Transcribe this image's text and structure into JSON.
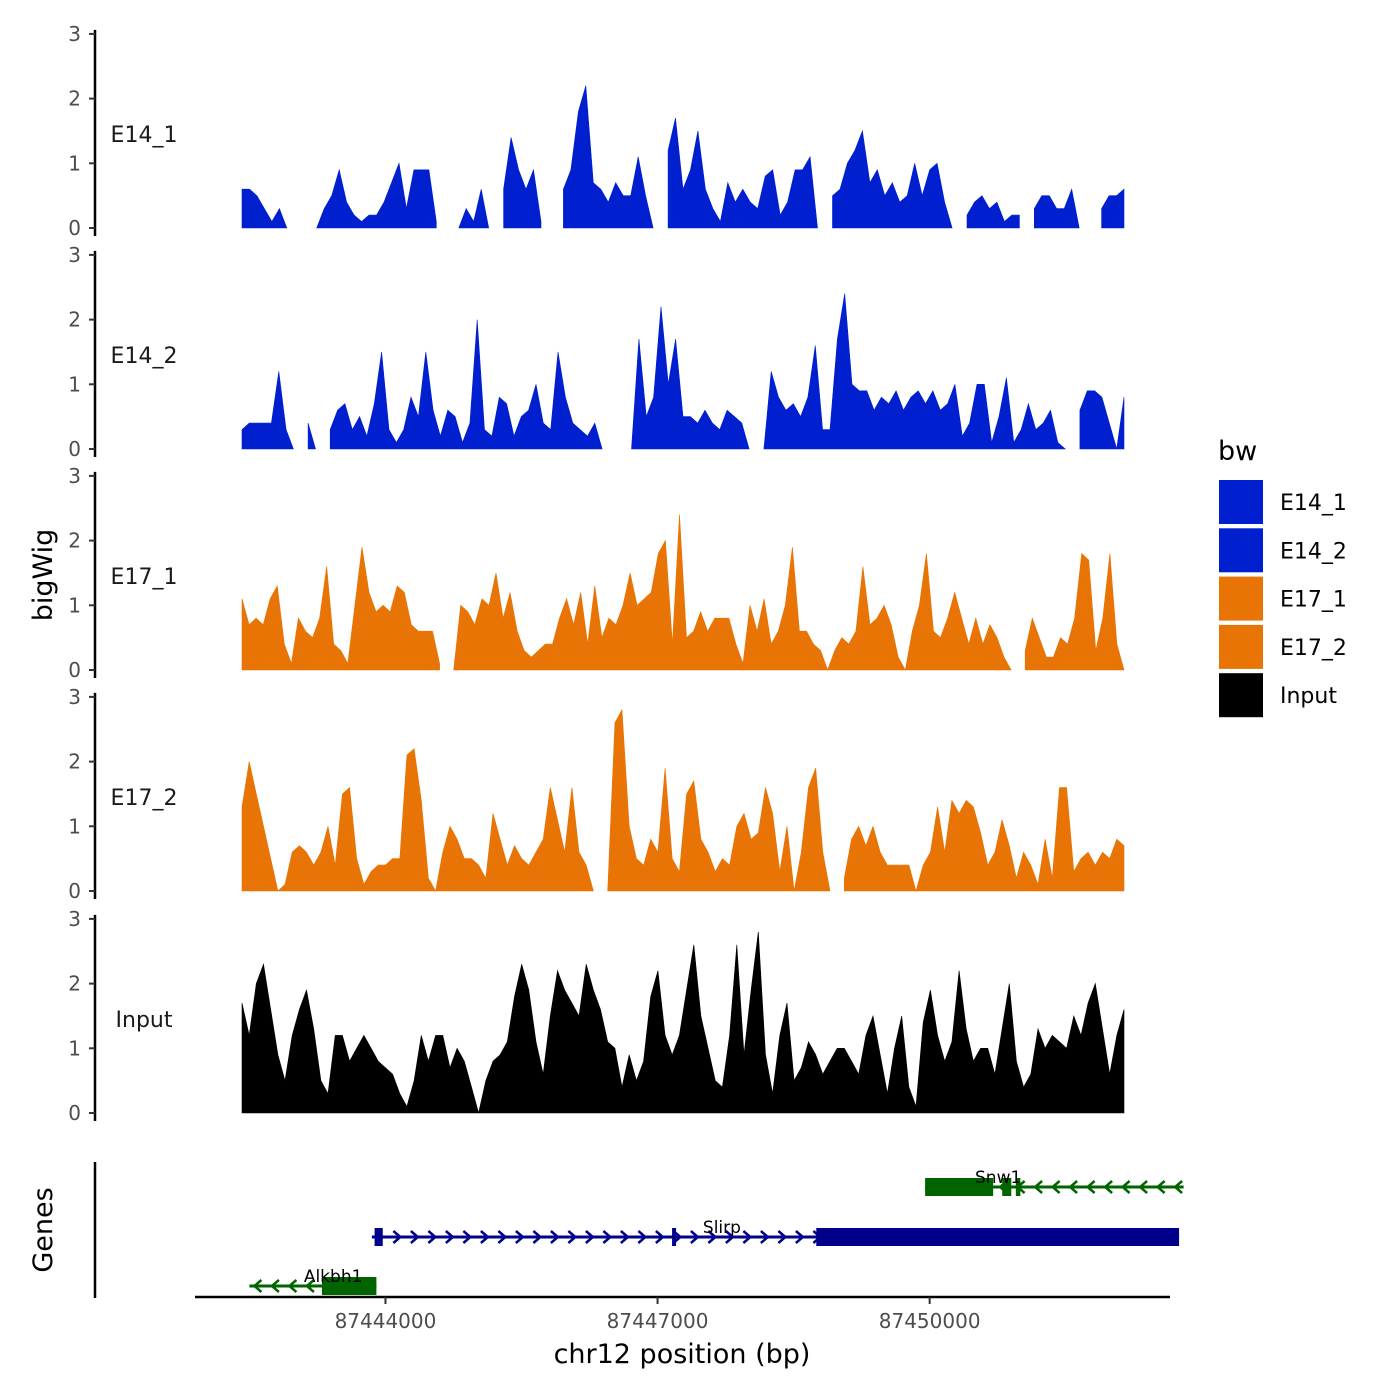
{
  "chart_data": {
    "type": "area",
    "title": "",
    "ylabel": "bigWig",
    "xlabel": "chr12 position (bp)",
    "xlim": [
      87441900,
      87452650
    ],
    "ylim": [
      0,
      3
    ],
    "y_ticks": [
      0,
      1,
      2,
      3
    ],
    "x_ticks": [
      87444000,
      87447000,
      87450000
    ],
    "region_start": 87442550,
    "region_end": 87452800,
    "legend": {
      "title": "bw",
      "position": "right",
      "entries": [
        {
          "label": "E14_1",
          "color": "#0020d0"
        },
        {
          "label": "E14_2",
          "color": "#0020d0"
        },
        {
          "label": "E17_1",
          "color": "#e87405"
        },
        {
          "label": "E17_2",
          "color": "#e87405"
        },
        {
          "label": "Input",
          "color": "#000000"
        }
      ]
    },
    "series": [
      {
        "name": "E14_1",
        "color": "#0020d0",
        "values": [
          0.6,
          0.6,
          0.5,
          0.3,
          0.1,
          0.3,
          0.0,
          null,
          null,
          null,
          0.0,
          0.3,
          0.5,
          0.9,
          0.4,
          0.2,
          0.1,
          0.2,
          0.2,
          0.4,
          0.7,
          1.0,
          0.3,
          0.9,
          0.9,
          0.9,
          0.1,
          null,
          null,
          0.0,
          0.3,
          0.1,
          0.6,
          0.0,
          null,
          0.6,
          1.4,
          0.9,
          0.6,
          0.9,
          0.1,
          null,
          null,
          0.6,
          0.9,
          1.8,
          2.2,
          0.7,
          0.6,
          0.4,
          0.7,
          0.5,
          0.5,
          1.1,
          0.5,
          0.0,
          null,
          1.2,
          1.7,
          0.6,
          0.9,
          1.5,
          0.6,
          0.3,
          0.1,
          0.7,
          0.4,
          0.6,
          0.4,
          0.3,
          0.8,
          0.9,
          0.2,
          0.4,
          0.9,
          0.9,
          1.1,
          0.0,
          null,
          0.5,
          0.6,
          1.0,
          1.2,
          1.5,
          0.7,
          0.9,
          0.5,
          0.7,
          0.4,
          0.5,
          1.0,
          0.5,
          0.9,
          1.0,
          0.4,
          0.0,
          null,
          0.2,
          0.4,
          0.5,
          0.3,
          0.4,
          0.1,
          0.2,
          0.2,
          null,
          0.3,
          0.5,
          0.5,
          0.3,
          0.3,
          0.6,
          0.0,
          null,
          null,
          0.3,
          0.5,
          0.5,
          0.6
        ]
      },
      {
        "name": "E14_2",
        "color": "#0020d0",
        "values": [
          0.3,
          0.4,
          0.4,
          0.4,
          0.4,
          1.2,
          0.3,
          0.0,
          null,
          0.4,
          0.0,
          null,
          0.3,
          0.6,
          0.7,
          0.3,
          0.5,
          0.2,
          0.7,
          1.5,
          0.3,
          0.1,
          0.3,
          0.8,
          0.5,
          1.5,
          0.6,
          0.2,
          0.6,
          0.5,
          0.1,
          0.4,
          2.0,
          0.3,
          0.2,
          0.8,
          0.7,
          0.2,
          0.5,
          0.6,
          1.0,
          0.4,
          0.3,
          1.5,
          0.8,
          0.4,
          0.3,
          0.2,
          0.4,
          0.0,
          null,
          null,
          null,
          0.0,
          1.7,
          0.5,
          0.8,
          2.2,
          1.0,
          1.7,
          0.5,
          0.5,
          0.4,
          0.6,
          0.4,
          0.3,
          0.6,
          0.5,
          0.4,
          0.0,
          null,
          0.0,
          1.2,
          0.8,
          0.6,
          0.7,
          0.5,
          0.8,
          1.6,
          0.3,
          0.3,
          1.7,
          2.4,
          1.0,
          0.9,
          0.9,
          0.6,
          0.8,
          0.7,
          0.9,
          0.6,
          0.8,
          0.9,
          0.7,
          0.9,
          0.6,
          0.7,
          1.0,
          0.2,
          0.4,
          1.0,
          1.0,
          0.1,
          0.5,
          1.1,
          0.1,
          0.3,
          0.7,
          0.3,
          0.4,
          0.6,
          0.1,
          0.0,
          null,
          0.6,
          0.9,
          0.9,
          0.8,
          0.4,
          0.0,
          0.8
        ]
      },
      {
        "name": "E17_1",
        "color": "#e87405",
        "values": [
          1.1,
          0.7,
          0.8,
          0.7,
          1.1,
          1.3,
          0.4,
          0.1,
          0.8,
          0.6,
          0.5,
          0.8,
          1.6,
          0.4,
          0.3,
          0.1,
          1.0,
          1.9,
          1.2,
          0.9,
          1.0,
          0.9,
          1.3,
          1.2,
          0.7,
          0.6,
          0.6,
          0.6,
          0.1,
          null,
          0.0,
          1.0,
          0.9,
          0.7,
          1.1,
          1.0,
          1.5,
          0.8,
          1.2,
          0.6,
          0.3,
          0.2,
          0.3,
          0.4,
          0.4,
          0.8,
          1.1,
          0.7,
          1.2,
          0.4,
          1.3,
          0.5,
          0.8,
          0.7,
          1.0,
          1.5,
          1.0,
          1.1,
          1.2,
          1.8,
          2.0,
          0.4,
          2.4,
          0.5,
          0.6,
          0.9,
          0.6,
          0.8,
          0.8,
          0.8,
          0.4,
          0.1,
          1.0,
          0.6,
          1.1,
          0.4,
          0.6,
          1.0,
          1.9,
          0.6,
          0.6,
          0.4,
          0.3,
          0.0,
          0.3,
          0.5,
          0.4,
          0.6,
          1.6,
          0.7,
          0.8,
          1.0,
          0.7,
          0.2,
          0.0,
          0.6,
          1.0,
          1.8,
          0.6,
          0.5,
          0.8,
          1.2,
          0.8,
          0.4,
          0.8,
          0.4,
          0.7,
          0.5,
          0.2,
          0.0,
          null,
          0.3,
          0.8,
          0.5,
          0.2,
          0.2,
          0.5,
          0.4,
          0.8,
          1.8,
          1.7,
          0.3,
          0.8,
          1.8,
          0.4,
          0.0
        ]
      },
      {
        "name": "E17_2",
        "color": "#e87405",
        "values": [
          1.3,
          2.0,
          1.5,
          1.0,
          0.5,
          0.0,
          0.1,
          0.6,
          0.7,
          0.6,
          0.4,
          0.6,
          1.0,
          0.4,
          1.5,
          1.6,
          0.5,
          0.1,
          0.3,
          0.4,
          0.4,
          0.5,
          0.5,
          2.1,
          2.2,
          1.4,
          0.2,
          0.0,
          0.6,
          1.0,
          0.8,
          0.5,
          0.5,
          0.4,
          0.2,
          1.2,
          0.8,
          0.4,
          0.7,
          0.5,
          0.4,
          0.6,
          0.8,
          1.6,
          1.1,
          0.6,
          1.6,
          0.6,
          0.4,
          0.0,
          null,
          0.0,
          2.6,
          2.8,
          1.0,
          0.5,
          0.4,
          0.8,
          0.6,
          1.9,
          0.5,
          0.3,
          1.5,
          1.7,
          0.8,
          0.6,
          0.3,
          0.5,
          0.4,
          1.0,
          1.2,
          0.8,
          0.9,
          1.6,
          1.2,
          0.3,
          1.0,
          0.0,
          0.6,
          1.6,
          1.9,
          0.6,
          0.0,
          null,
          0.2,
          0.8,
          1.0,
          0.7,
          1.0,
          0.6,
          0.4,
          0.4,
          0.4,
          0.4,
          0.0,
          0.4,
          0.6,
          1.3,
          0.6,
          1.4,
          1.2,
          1.4,
          1.3,
          0.9,
          0.4,
          0.6,
          1.1,
          0.7,
          0.2,
          0.6,
          0.4,
          0.1,
          0.8,
          0.2,
          1.6,
          1.6,
          0.3,
          0.5,
          0.6,
          0.4,
          0.6,
          0.5,
          0.8,
          0.7
        ]
      },
      {
        "name": "Input",
        "color": "#000000",
        "values": [
          1.7,
          1.2,
          2.0,
          2.3,
          1.6,
          0.9,
          0.5,
          1.2,
          1.6,
          1.9,
          1.3,
          0.5,
          0.3,
          1.2,
          1.2,
          0.8,
          1.0,
          1.2,
          1.0,
          0.8,
          0.7,
          0.6,
          0.3,
          0.1,
          0.5,
          1.2,
          0.8,
          1.2,
          1.2,
          0.7,
          1.0,
          0.8,
          0.4,
          0.0,
          0.5,
          0.8,
          0.9,
          1.1,
          1.8,
          2.3,
          1.9,
          1.1,
          0.6,
          1.5,
          2.2,
          1.9,
          1.7,
          1.5,
          2.3,
          1.9,
          1.6,
          1.1,
          1.0,
          0.4,
          0.9,
          0.5,
          0.8,
          1.8,
          2.2,
          1.2,
          0.9,
          1.2,
          1.9,
          2.6,
          1.5,
          1.0,
          0.5,
          0.4,
          1.2,
          2.6,
          0.9,
          1.9,
          2.8,
          0.9,
          0.3,
          1.2,
          1.7,
          0.5,
          0.7,
          1.1,
          0.9,
          0.6,
          0.8,
          1.0,
          1.0,
          0.8,
          0.6,
          1.2,
          1.5,
          0.9,
          0.3,
          1.0,
          1.5,
          0.4,
          0.1,
          1.4,
          1.9,
          1.2,
          0.8,
          1.1,
          2.2,
          1.3,
          0.8,
          1.0,
          1.0,
          0.6,
          1.3,
          2.0,
          0.8,
          0.4,
          0.6,
          1.3,
          1.0,
          1.2,
          1.1,
          1.0,
          1.5,
          1.2,
          1.7,
          2.0,
          1.3,
          0.6,
          1.2,
          1.6
        ]
      }
    ],
    "genes": [
      {
        "name": "Snw1",
        "strand": "-",
        "color": "#006400",
        "start": 87449950,
        "end": 87452800,
        "exons": [
          [
            87449950,
            87450700
          ],
          [
            87450800,
            87450900
          ],
          [
            87450950,
            87451000
          ]
        ]
      },
      {
        "name": "Slirp",
        "strand": "+",
        "color": "#00008b",
        "start": 87443850,
        "end": 87452750,
        "exons": [
          [
            87443880,
            87443970
          ],
          [
            87447160,
            87447200
          ],
          [
            87448750,
            87452750
          ]
        ]
      },
      {
        "name": "Alkbh1",
        "strand": "-",
        "color": "#006400",
        "start": 87442500,
        "end": 87443900,
        "exons": [
          [
            87443300,
            87443900
          ]
        ]
      }
    ]
  },
  "gene_track_label": "Genes"
}
